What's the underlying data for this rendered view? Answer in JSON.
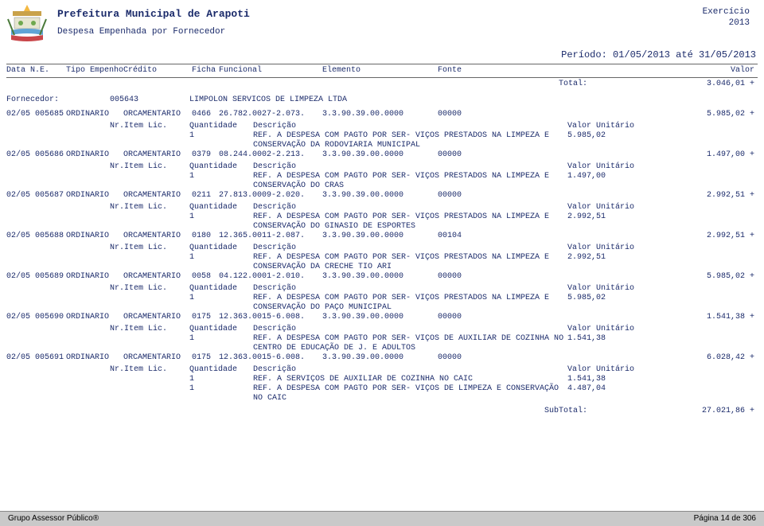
{
  "header": {
    "title": "Prefeitura Municipal de Arapoti",
    "subtitle": "Despesa Empenhada por Fornecedor",
    "exercicio_label": "Exercício",
    "exercicio_year": "2013",
    "periodo": "Período: 01/05/2013 até 31/05/2013"
  },
  "columns": {
    "data": "Data N.E.",
    "tipo": "Tipo Empenho",
    "credito": "Crédito",
    "ficha": "Ficha",
    "funcional": "Funcional",
    "elemento": "Elemento",
    "fonte": "Fonte",
    "valor": "Valor"
  },
  "total": {
    "label": "Total:",
    "value": "3.046,01 +"
  },
  "fornecedor": {
    "label": "Fornecedor:",
    "code": "005643",
    "name": "LIMPOLON SERVICOS DE LIMPEZA LTDA"
  },
  "item_labels": {
    "lic": "Nr.Item Lic.",
    "qtd": "Quantidade",
    "desc": "Descrição",
    "unit": "Valor Unitário"
  },
  "entries": [
    {
      "data": "02/05 005685",
      "tipo": "ORDINARIO",
      "credito": "ORCAMENTARIO",
      "ficha": "0466",
      "funcional": "26.782.0027-2.073.",
      "elemento": "3.3.90.39.00.0000",
      "fonte": "00000",
      "valor": "5.985,02 +",
      "items": [
        {
          "qtd": "1",
          "desc": "REF. A DESPESA COM PAGTO POR SER- VIÇOS PRESTADOS NA LIMPEZA E CONSERVAÇÃO DA RODOVIARIA MUNICIPAL",
          "unit": "5.985,02"
        }
      ]
    },
    {
      "data": "02/05 005686",
      "tipo": "ORDINARIO",
      "credito": "ORCAMENTARIO",
      "ficha": "0379",
      "funcional": "08.244.0002-2.213.",
      "elemento": "3.3.90.39.00.0000",
      "fonte": "00000",
      "valor": "1.497,00 +",
      "items": [
        {
          "qtd": "1",
          "desc": "REF. A DESPESA COM PAGTO POR SER- VIÇOS PRESTADOS NA LIMPEZA E CONSERVAÇÃO DO CRAS",
          "unit": "1.497,00"
        }
      ]
    },
    {
      "data": "02/05 005687",
      "tipo": "ORDINARIO",
      "credito": "ORCAMENTARIO",
      "ficha": "0211",
      "funcional": "27.813.0009-2.020.",
      "elemento": "3.3.90.39.00.0000",
      "fonte": "00000",
      "valor": "2.992,51 +",
      "items": [
        {
          "qtd": "1",
          "desc": "REF. A DESPESA COM PAGTO POR SER- VIÇOS PRESTADOS NA LIMPEZA E CONSERVAÇÃO DO GINASIO DE ESPORTES",
          "unit": "2.992,51"
        }
      ]
    },
    {
      "data": "02/05 005688",
      "tipo": "ORDINARIO",
      "credito": "ORCAMENTARIO",
      "ficha": "0180",
      "funcional": "12.365.0011-2.087.",
      "elemento": "3.3.90.39.00.0000",
      "fonte": "00104",
      "valor": "2.992,51 +",
      "items": [
        {
          "qtd": "1",
          "desc": "REF. A DESPESA COM PAGTO POR SER- VIÇOS PRESTADOS NA LIMPEZA E CONSERVAÇÃO DA CRECHE TIO ARI",
          "unit": "2.992,51"
        }
      ]
    },
    {
      "data": "02/05 005689",
      "tipo": "ORDINARIO",
      "credito": "ORCAMENTARIO",
      "ficha": "0058",
      "funcional": "04.122.0001-2.010.",
      "elemento": "3.3.90.39.00.0000",
      "fonte": "00000",
      "valor": "5.985,02 +",
      "items": [
        {
          "qtd": "1",
          "desc": "REF. A DESPESA COM PAGTO POR SER- VIÇOS PRESTADOS NA LIMPEZA E CONSERVAÇÃO DO PAÇO MUNICIPAL",
          "unit": "5.985,02"
        }
      ]
    },
    {
      "data": "02/05 005690",
      "tipo": "ORDINARIO",
      "credito": "ORCAMENTARIO",
      "ficha": "0175",
      "funcional": "12.363.0015-6.008.",
      "elemento": "3.3.90.39.00.0000",
      "fonte": "00000",
      "valor": "1.541,38 +",
      "items": [
        {
          "qtd": "1",
          "desc": "REF. A DESPESA COM PAGTO POR SER- VIÇOS DE AUXILIAR DE COZINHA NO CENTRO DE EDUCAÇÃO DE J. E ADULTOS",
          "unit": "1.541,38"
        }
      ]
    },
    {
      "data": "02/05 005691",
      "tipo": "ORDINARIO",
      "credito": "ORCAMENTARIO",
      "ficha": "0175",
      "funcional": "12.363.0015-6.008.",
      "elemento": "3.3.90.39.00.0000",
      "fonte": "00000",
      "valor": "6.028,42 +",
      "items": [
        {
          "qtd": "1",
          "desc": "REF. A SERVIÇOS DE AUXILIAR DE COZINHA NO CAIC",
          "unit": "1.541,38"
        },
        {
          "qtd": "1",
          "desc": "REF. A DESPESA COM PAGTO POR SER- VIÇOS DE LIMPEZA E CONSERVAÇÃO NO CAIC",
          "unit": "4.487,04"
        }
      ]
    }
  ],
  "subtotal": {
    "label": "SubTotal:",
    "value": "27.021,86 +"
  },
  "footer": {
    "left": "Grupo Assessor Público®",
    "right": "Página 14 de 306"
  }
}
